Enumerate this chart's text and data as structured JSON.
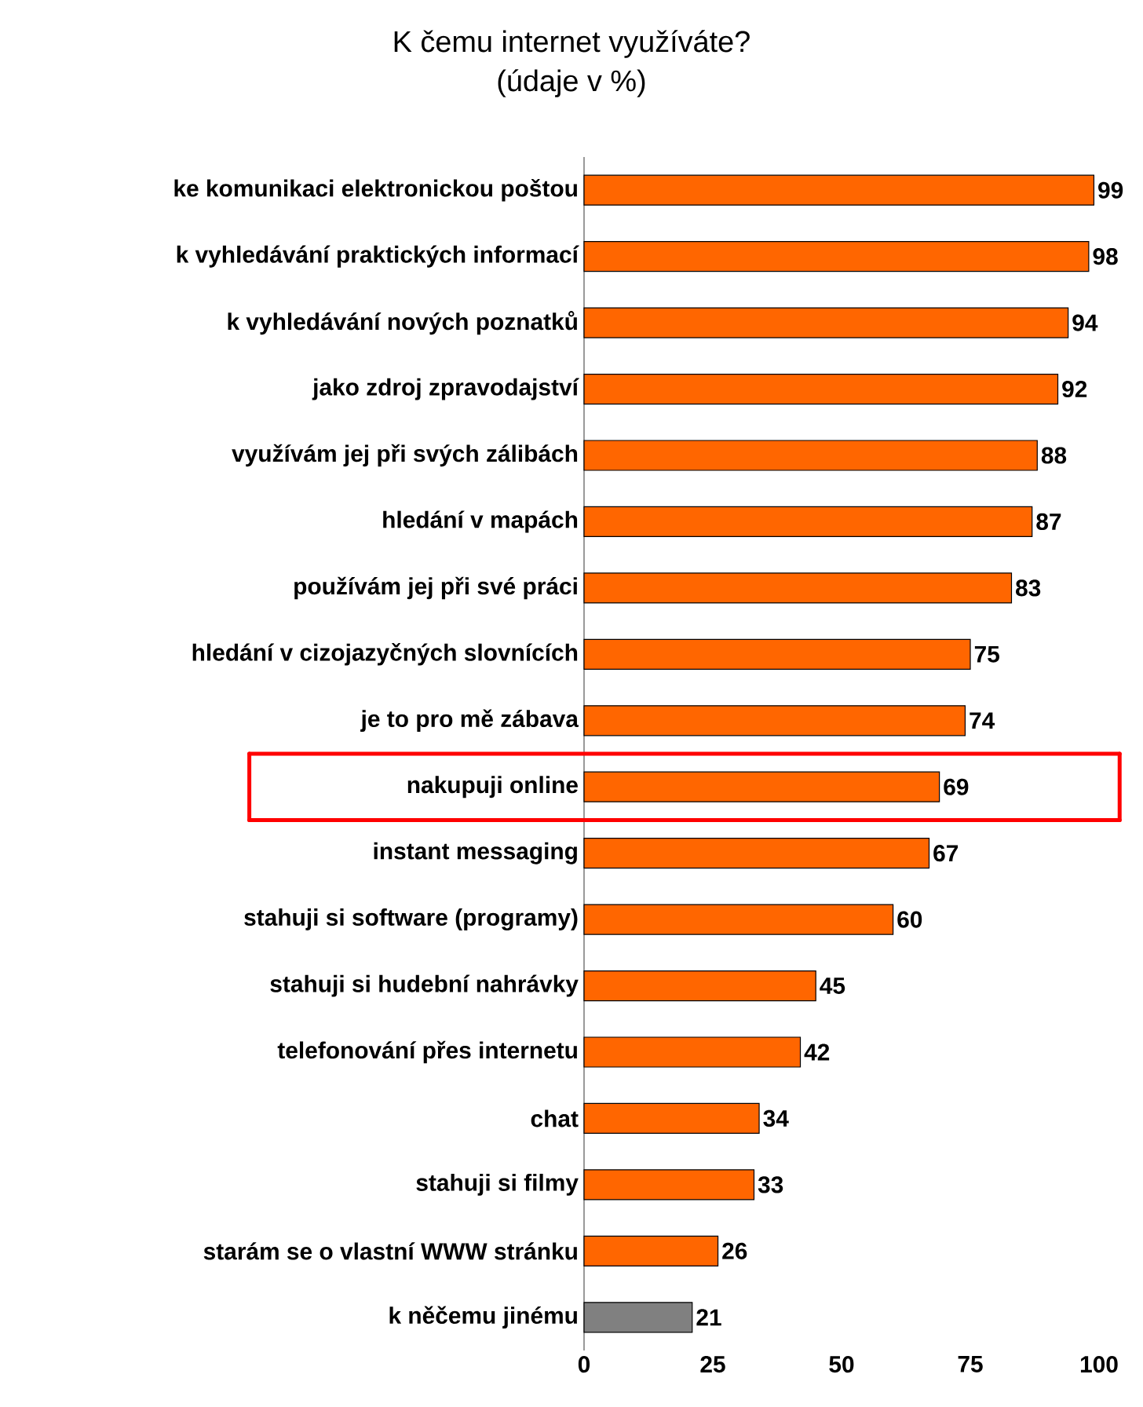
{
  "chart_data": {
    "type": "bar",
    "orientation": "horizontal",
    "title": "K čemu internet využíváte?",
    "subtitle": "(údaje v %)",
    "categories": [
      "ke komunikaci elektronickou poštou",
      "k vyhledávání praktických informací",
      "k vyhledávání nových poznatků",
      "jako zdroj zpravodajství",
      "využívám jej při svých zálibách",
      "hledání v mapách",
      "používám jej při své práci",
      "hledání v cizojazyčných slovnících",
      "je to pro mě zábava",
      "nakupuji online",
      "instant messaging",
      "stahuji si software (programy)",
      "stahuji si hudební nahrávky",
      "telefonování přes internetu",
      "chat",
      "stahuji si filmy",
      "starám se o vlastní WWW stránku",
      "k něčemu jinému"
    ],
    "values": [
      99,
      98,
      94,
      92,
      88,
      87,
      83,
      75,
      74,
      69,
      67,
      60,
      45,
      42,
      34,
      33,
      26,
      21
    ],
    "colors": [
      "#ff6600",
      "#ff6600",
      "#ff6600",
      "#ff6600",
      "#ff6600",
      "#ff6600",
      "#ff6600",
      "#ff6600",
      "#ff6600",
      "#ff6600",
      "#ff6600",
      "#ff6600",
      "#ff6600",
      "#ff6600",
      "#ff6600",
      "#ff6600",
      "#ff6600",
      "#808080"
    ],
    "xlim": [
      0,
      100
    ],
    "xticks": [
      0,
      25,
      50,
      75,
      100
    ],
    "data_labels": true
  }
}
